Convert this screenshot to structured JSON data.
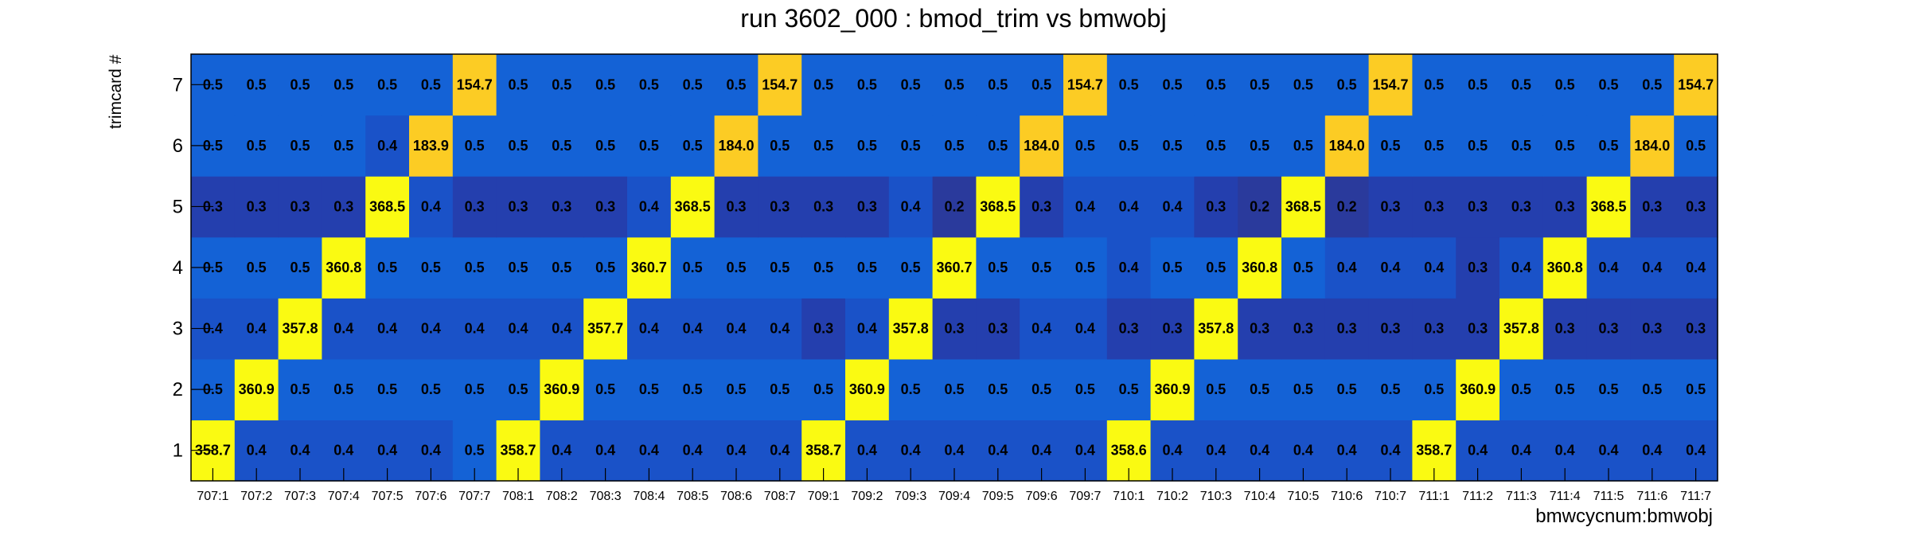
{
  "chart_data": {
    "type": "heatmap",
    "title": "run 3602_000 : bmod_trim vs bmwobj",
    "xlabel": "bmwcycnum:bmwobj",
    "ylabel": "trimcard #",
    "x_categories": [
      "707:1",
      "707:2",
      "707:3",
      "707:4",
      "707:5",
      "707:6",
      "707:7",
      "708:1",
      "708:2",
      "708:3",
      "708:4",
      "708:5",
      "708:6",
      "708:7",
      "709:1",
      "709:2",
      "709:3",
      "709:4",
      "709:5",
      "709:6",
      "709:7",
      "710:1",
      "710:2",
      "710:3",
      "710:4",
      "710:5",
      "710:6",
      "710:7",
      "711:1",
      "711:2",
      "711:3",
      "711:4",
      "711:5",
      "711:6",
      "711:7"
    ],
    "y_categories": [
      "1",
      "2",
      "3",
      "4",
      "5",
      "6",
      "7"
    ],
    "values": [
      [
        "358.7",
        "0.4",
        "0.4",
        "0.4",
        "0.4",
        "0.4",
        "0.5",
        "358.7",
        "0.4",
        "0.4",
        "0.4",
        "0.4",
        "0.4",
        "0.4",
        "358.7",
        "0.4",
        "0.4",
        "0.4",
        "0.4",
        "0.4",
        "0.4",
        "358.6",
        "0.4",
        "0.4",
        "0.4",
        "0.4",
        "0.4",
        "0.4",
        "358.7",
        "0.4",
        "0.4",
        "0.4",
        "0.4",
        "0.4",
        "0.4"
      ],
      [
        "0.5",
        "360.9",
        "0.5",
        "0.5",
        "0.5",
        "0.5",
        "0.5",
        "0.5",
        "360.9",
        "0.5",
        "0.5",
        "0.5",
        "0.5",
        "0.5",
        "0.5",
        "360.9",
        "0.5",
        "0.5",
        "0.5",
        "0.5",
        "0.5",
        "0.5",
        "360.9",
        "0.5",
        "0.5",
        "0.5",
        "0.5",
        "0.5",
        "0.5",
        "360.9",
        "0.5",
        "0.5",
        "0.5",
        "0.5",
        "0.5"
      ],
      [
        "0.4",
        "0.4",
        "357.8",
        "0.4",
        "0.4",
        "0.4",
        "0.4",
        "0.4",
        "0.4",
        "357.7",
        "0.4",
        "0.4",
        "0.4",
        "0.4",
        "0.3",
        "0.4",
        "357.8",
        "0.3",
        "0.3",
        "0.4",
        "0.4",
        "0.3",
        "0.3",
        "357.8",
        "0.3",
        "0.3",
        "0.3",
        "0.3",
        "0.3",
        "0.3",
        "357.8",
        "0.3",
        "0.3",
        "0.3",
        "0.3"
      ],
      [
        "0.5",
        "0.5",
        "0.5",
        "360.8",
        "0.5",
        "0.5",
        "0.5",
        "0.5",
        "0.5",
        "0.5",
        "360.7",
        "0.5",
        "0.5",
        "0.5",
        "0.5",
        "0.5",
        "0.5",
        "360.7",
        "0.5",
        "0.5",
        "0.5",
        "0.4",
        "0.5",
        "0.5",
        "360.8",
        "0.5",
        "0.4",
        "0.4",
        "0.4",
        "0.3",
        "0.4",
        "360.8",
        "0.4",
        "0.4",
        "0.4"
      ],
      [
        "0.3",
        "0.3",
        "0.3",
        "0.3",
        "368.5",
        "0.4",
        "0.3",
        "0.3",
        "0.3",
        "0.3",
        "0.4",
        "368.5",
        "0.3",
        "0.3",
        "0.3",
        "0.3",
        "0.4",
        "0.2",
        "368.5",
        "0.3",
        "0.4",
        "0.4",
        "0.4",
        "0.3",
        "0.2",
        "368.5",
        "0.2",
        "0.3",
        "0.3",
        "0.3",
        "0.3",
        "0.3",
        "368.5",
        "0.3",
        "0.3"
      ],
      [
        "0.5",
        "0.5",
        "0.5",
        "0.5",
        "0.4",
        "183.9",
        "0.5",
        "0.5",
        "0.5",
        "0.5",
        "0.5",
        "0.5",
        "184.0",
        "0.5",
        "0.5",
        "0.5",
        "0.5",
        "0.5",
        "0.5",
        "184.0",
        "0.5",
        "0.5",
        "0.5",
        "0.5",
        "0.5",
        "0.5",
        "184.0",
        "0.5",
        "0.5",
        "0.5",
        "0.5",
        "0.5",
        "0.5",
        "184.0",
        "0.5"
      ],
      [
        "0.5",
        "0.5",
        "0.5",
        "0.5",
        "0.5",
        "0.5",
        "154.7",
        "0.5",
        "0.5",
        "0.5",
        "0.5",
        "0.5",
        "0.5",
        "154.7",
        "0.5",
        "0.5",
        "0.5",
        "0.5",
        "0.5",
        "0.5",
        "154.7",
        "0.5",
        "0.5",
        "0.5",
        "0.5",
        "0.5",
        "0.5",
        "154.7",
        "0.5",
        "0.5",
        "0.5",
        "0.5",
        "0.5",
        "0.5",
        "154.7"
      ]
    ],
    "colors": {
      "dark": "#2a3a9c",
      "mid_dark": "#1a4cc4",
      "mid": "#1462d6",
      "orange": "#fccc24",
      "yellow": "#fafa12"
    }
  }
}
